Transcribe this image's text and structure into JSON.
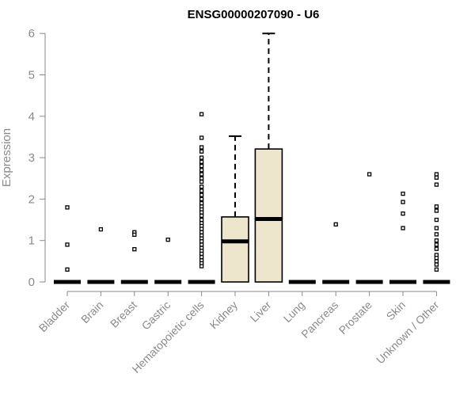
{
  "chart_data": {
    "type": "box",
    "title": "ENSG00000207090 - U6",
    "xlabel": "",
    "ylabel": "Expression",
    "ylim": [
      0,
      6
    ],
    "yticks": [
      "0",
      "1",
      "2",
      "3",
      "4",
      "5",
      "6"
    ],
    "grid": false,
    "legend": "none",
    "colors": {
      "box_fill": "#ede6cc",
      "box_stroke": "#000000",
      "axis": "#8a8a8a"
    },
    "categories": [
      "Bladder",
      "Brain",
      "Breast",
      "Gastric",
      "Hematopoietic cells",
      "Kidney",
      "Liver",
      "Lung",
      "Pancreas",
      "Prostate",
      "Skin",
      "Unknown / Other"
    ],
    "boxes": [
      {
        "q1": 0,
        "median": 0,
        "q3": 0,
        "whisker_low": 0,
        "whisker_high": 0,
        "outliers": [
          1.8,
          0.9,
          0.3
        ]
      },
      {
        "q1": 0,
        "median": 0,
        "q3": 0,
        "whisker_low": 0,
        "whisker_high": 0,
        "outliers": [
          1.27
        ]
      },
      {
        "q1": 0,
        "median": 0,
        "q3": 0,
        "whisker_low": 0,
        "whisker_high": 0,
        "outliers": [
          1.2,
          1.14,
          0.79
        ]
      },
      {
        "q1": 0,
        "median": 0,
        "q3": 0,
        "whisker_low": 0,
        "whisker_high": 0,
        "outliers": [
          1.02
        ]
      },
      {
        "q1": 0,
        "median": 0,
        "q3": 0,
        "whisker_low": 0,
        "whisker_high": 0,
        "outliers": [
          4.05,
          3.48,
          3.25,
          3.15,
          3.0,
          2.9,
          2.8,
          2.7,
          2.6,
          2.5,
          2.42,
          2.3,
          2.2,
          2.1,
          2.0,
          1.9,
          1.82,
          1.75,
          1.68,
          1.6,
          1.5,
          1.42,
          1.35,
          1.28,
          1.2,
          1.12,
          1.05,
          0.98,
          0.9,
          0.82,
          0.75,
          0.68,
          0.6,
          0.52,
          0.45,
          0.38
        ]
      },
      {
        "q1": 0,
        "median": 0.98,
        "q3": 1.57,
        "whisker_low": 0,
        "whisker_high": 3.52,
        "outliers": []
      },
      {
        "q1": 0,
        "median": 1.52,
        "q3": 3.21,
        "whisker_low": 0,
        "whisker_high": 6.0,
        "outliers": []
      },
      {
        "q1": 0,
        "median": 0,
        "q3": 0,
        "whisker_low": 0,
        "whisker_high": 0,
        "outliers": []
      },
      {
        "q1": 0,
        "median": 0,
        "q3": 0,
        "whisker_low": 0,
        "whisker_high": 0,
        "outliers": [
          1.39
        ]
      },
      {
        "q1": 0,
        "median": 0,
        "q3": 0,
        "whisker_low": 0,
        "whisker_high": 0,
        "outliers": [
          2.6
        ]
      },
      {
        "q1": 0,
        "median": 0,
        "q3": 0,
        "whisker_low": 0,
        "whisker_high": 0,
        "outliers": [
          2.13,
          1.93,
          1.65,
          1.3
        ]
      },
      {
        "q1": 0,
        "median": 0,
        "q3": 0,
        "whisker_low": 0,
        "whisker_high": 0,
        "outliers": [
          2.6,
          2.52,
          2.35,
          1.82,
          1.72,
          1.5,
          1.3,
          1.15,
          1.0,
          0.9,
          0.8,
          0.65,
          0.58,
          0.5,
          0.42,
          0.3
        ]
      }
    ]
  }
}
